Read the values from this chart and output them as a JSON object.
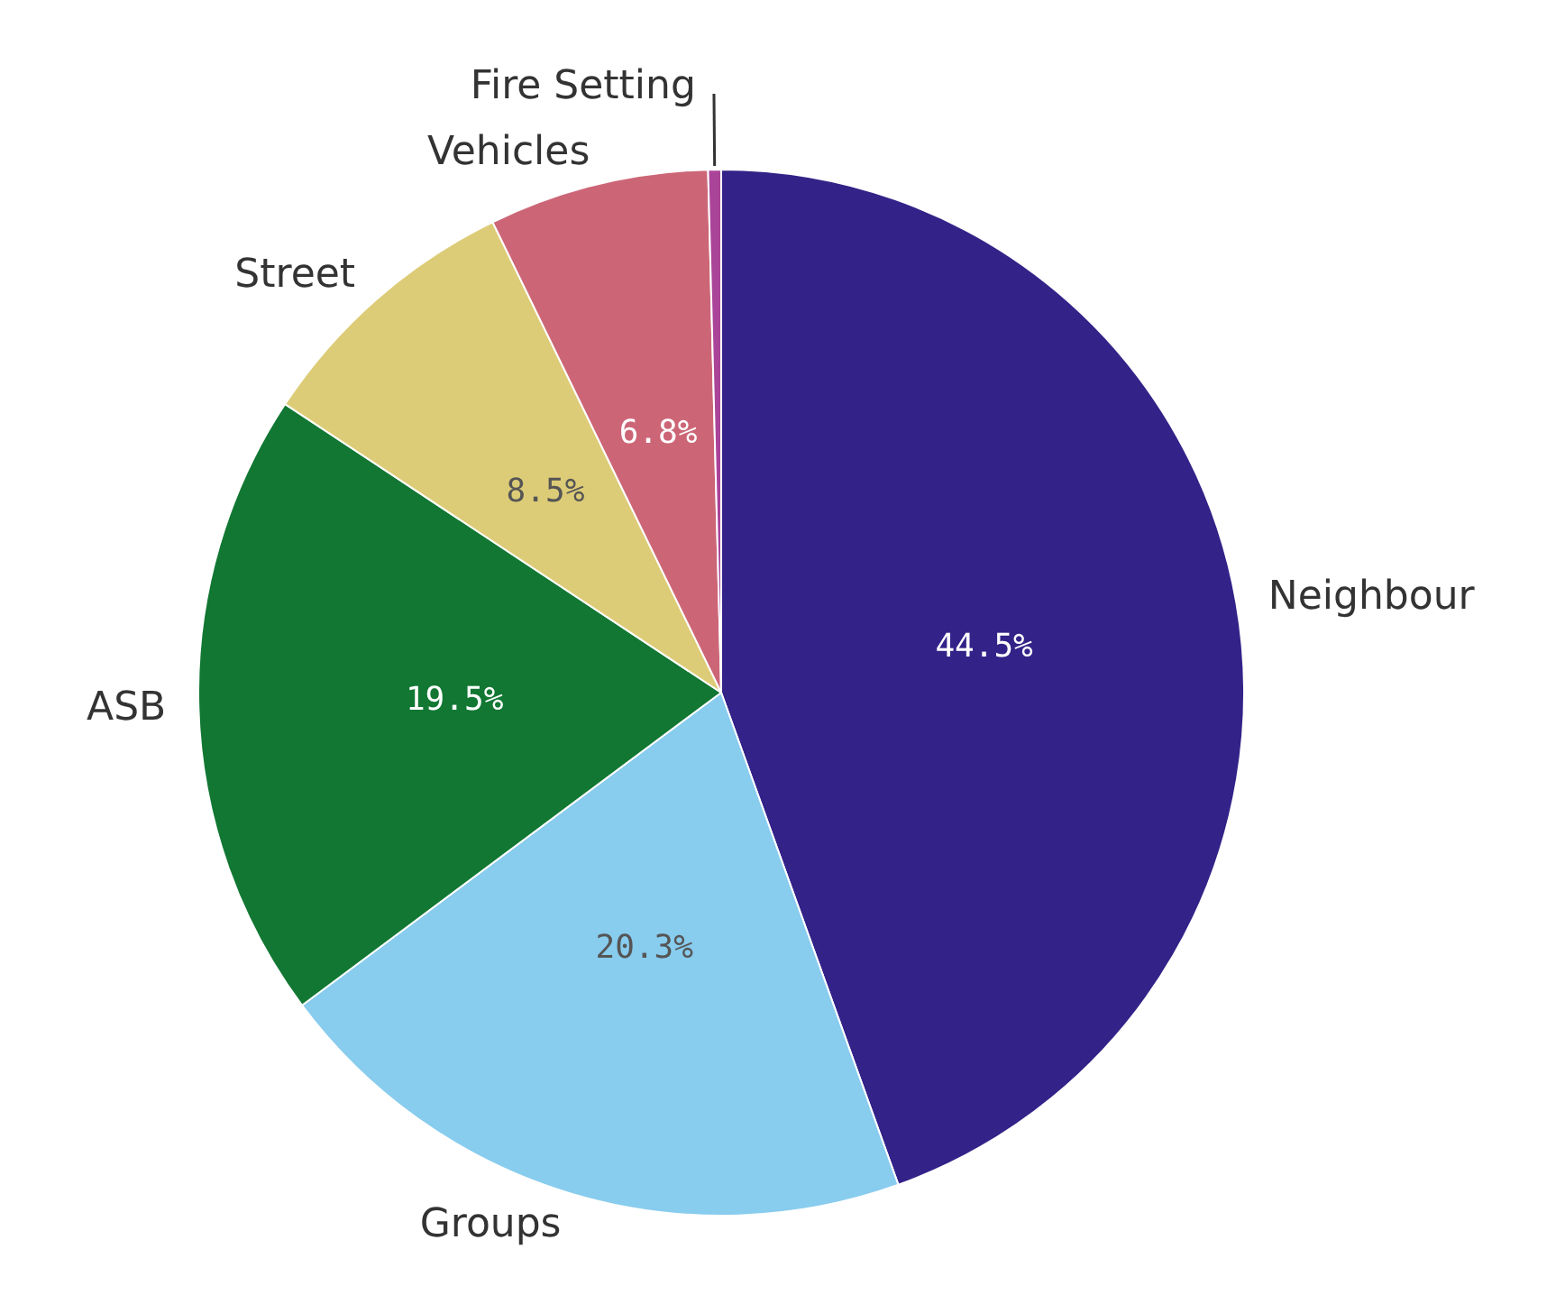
{
  "chart_data": {
    "type": "pie",
    "categories": [
      "Neighbour",
      "Groups",
      "ASB",
      "Street",
      "Vehicles",
      "Fire Setting"
    ],
    "values": [
      44.5,
      20.3,
      19.5,
      8.5,
      6.8,
      0.4
    ],
    "colors": [
      "#332288",
      "#88ccee",
      "#117733",
      "#ddcc77",
      "#cc6677",
      "#aa4499"
    ],
    "value_labels": [
      "44.5%",
      "20.3%",
      "19.5%",
      "8.5%",
      "6.8%",
      null
    ],
    "legend": false
  }
}
